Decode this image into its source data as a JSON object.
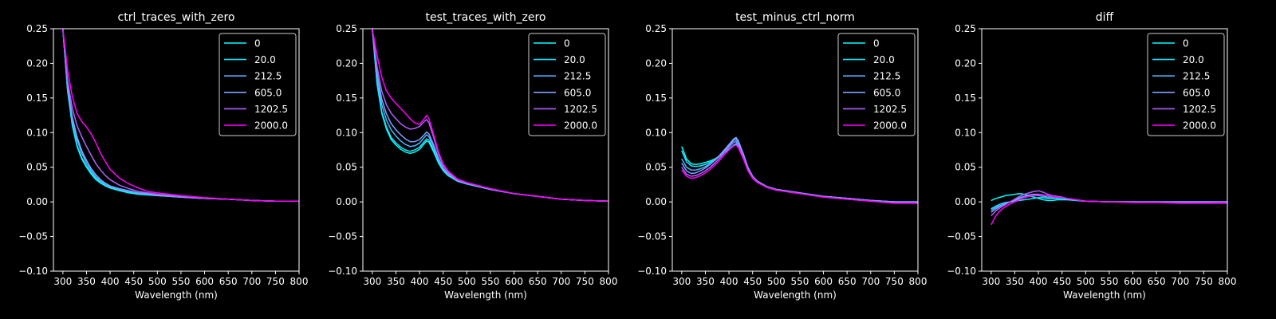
{
  "figure": {
    "background": "#000000",
    "foreground": "#ffffff"
  },
  "legend": {
    "placement": "top-right",
    "entries": [
      "0",
      "20.0",
      "212.5",
      "605.0",
      "1202.5",
      "2000.0"
    ],
    "colors": [
      "#00ffff",
      "#1ae5ff",
      "#4cb3ff",
      "#80a0ff",
      "#b060ff",
      "#ff00ff"
    ]
  },
  "chart_data": [
    {
      "type": "line",
      "title": "ctrl_traces_with_zero",
      "xlabel": "Wavelength (nm)",
      "ylabel": "",
      "xlim": [
        280,
        800
      ],
      "ylim": [
        -0.1,
        0.25
      ],
      "xticks": [
        300,
        350,
        400,
        450,
        500,
        550,
        600,
        650,
        700,
        750,
        800
      ],
      "yticks": [
        -0.1,
        -0.05,
        0.0,
        0.05,
        0.1,
        0.15,
        0.2,
        0.25
      ],
      "ytick_labels": [
        "−0.10",
        "−0.05",
        "0.00",
        "0.05",
        "0.10",
        "0.15",
        "0.20",
        "0.25"
      ],
      "legend": "top-right",
      "x": [
        300,
        310,
        320,
        330,
        340,
        350,
        360,
        370,
        380,
        390,
        400,
        420,
        440,
        460,
        480,
        500,
        550,
        600,
        650,
        700,
        750,
        800
      ],
      "series": [
        {
          "name": "0",
          "values": [
            0.25,
            0.16,
            0.11,
            0.08,
            0.062,
            0.05,
            0.04,
            0.032,
            0.027,
            0.023,
            0.02,
            0.016,
            0.013,
            0.011,
            0.01,
            0.009,
            0.007,
            0.005,
            0.004,
            0.002,
            0.001,
            0.001
          ]
        },
        {
          "name": "20.0",
          "values": [
            0.25,
            0.16,
            0.112,
            0.082,
            0.064,
            0.052,
            0.042,
            0.034,
            0.028,
            0.024,
            0.021,
            0.017,
            0.014,
            0.012,
            0.011,
            0.009,
            0.007,
            0.005,
            0.004,
            0.002,
            0.001,
            0.001
          ]
        },
        {
          "name": "212.5",
          "values": [
            0.25,
            0.165,
            0.118,
            0.09,
            0.07,
            0.056,
            0.045,
            0.036,
            0.03,
            0.025,
            0.022,
            0.018,
            0.015,
            0.013,
            0.011,
            0.01,
            0.007,
            0.005,
            0.004,
            0.002,
            0.001,
            0.001
          ]
        },
        {
          "name": "605.0",
          "values": [
            0.25,
            0.168,
            0.122,
            0.094,
            0.074,
            0.06,
            0.048,
            0.039,
            0.032,
            0.027,
            0.023,
            0.019,
            0.016,
            0.013,
            0.012,
            0.01,
            0.007,
            0.005,
            0.004,
            0.002,
            0.001,
            0.001
          ]
        },
        {
          "name": "1202.5",
          "values": [
            0.25,
            0.175,
            0.135,
            0.11,
            0.094,
            0.08,
            0.067,
            0.055,
            0.046,
            0.038,
            0.032,
            0.024,
            0.019,
            0.015,
            0.013,
            0.011,
            0.008,
            0.005,
            0.004,
            0.002,
            0.001,
            0.001
          ]
        },
        {
          "name": "2000.0",
          "values": [
            0.25,
            0.19,
            0.152,
            0.128,
            0.116,
            0.108,
            0.098,
            0.085,
            0.07,
            0.058,
            0.047,
            0.034,
            0.026,
            0.02,
            0.015,
            0.013,
            0.009,
            0.006,
            0.004,
            0.002,
            0.001,
            0.001
          ]
        }
      ]
    },
    {
      "type": "line",
      "title": "test_traces_with_zero",
      "xlabel": "Wavelength (nm)",
      "ylabel": "",
      "xlim": [
        280,
        800
      ],
      "ylim": [
        -0.1,
        0.25
      ],
      "xticks": [
        300,
        350,
        400,
        450,
        500,
        550,
        600,
        650,
        700,
        750,
        800
      ],
      "yticks": [
        -0.1,
        -0.05,
        0.0,
        0.05,
        0.1,
        0.15,
        0.2,
        0.25
      ],
      "ytick_labels": [
        "−0.10",
        "−0.05",
        "0.00",
        "0.05",
        "0.10",
        "0.15",
        "0.20",
        "0.25"
      ],
      "legend": "top-right",
      "x": [
        300,
        310,
        320,
        330,
        340,
        350,
        360,
        370,
        380,
        390,
        400,
        410,
        415,
        420,
        430,
        440,
        450,
        460,
        480,
        500,
        550,
        600,
        650,
        700,
        750,
        800
      ],
      "series": [
        {
          "name": "0",
          "values": [
            0.25,
            0.17,
            0.128,
            0.105,
            0.09,
            0.082,
            0.076,
            0.072,
            0.07,
            0.072,
            0.076,
            0.084,
            0.088,
            0.086,
            0.072,
            0.056,
            0.045,
            0.038,
            0.03,
            0.026,
            0.018,
            0.012,
            0.008,
            0.004,
            0.002,
            0.001
          ]
        },
        {
          "name": "20.0",
          "values": [
            0.25,
            0.172,
            0.13,
            0.108,
            0.093,
            0.085,
            0.079,
            0.075,
            0.073,
            0.075,
            0.079,
            0.087,
            0.091,
            0.089,
            0.075,
            0.058,
            0.046,
            0.039,
            0.03,
            0.026,
            0.018,
            0.012,
            0.008,
            0.004,
            0.002,
            0.001
          ]
        },
        {
          "name": "212.5",
          "values": [
            0.25,
            0.18,
            0.14,
            0.118,
            0.104,
            0.095,
            0.088,
            0.083,
            0.08,
            0.081,
            0.085,
            0.093,
            0.097,
            0.094,
            0.079,
            0.061,
            0.048,
            0.04,
            0.031,
            0.027,
            0.018,
            0.012,
            0.008,
            0.004,
            0.002,
            0.001
          ]
        },
        {
          "name": "605.0",
          "values": [
            0.25,
            0.186,
            0.148,
            0.127,
            0.113,
            0.104,
            0.097,
            0.091,
            0.087,
            0.087,
            0.09,
            0.097,
            0.101,
            0.098,
            0.082,
            0.063,
            0.049,
            0.041,
            0.031,
            0.027,
            0.018,
            0.012,
            0.008,
            0.004,
            0.002,
            0.001
          ]
        },
        {
          "name": "1202.5",
          "values": [
            0.25,
            0.195,
            0.16,
            0.14,
            0.128,
            0.12,
            0.113,
            0.108,
            0.105,
            0.106,
            0.109,
            0.116,
            0.119,
            0.114,
            0.093,
            0.069,
            0.053,
            0.043,
            0.032,
            0.027,
            0.019,
            0.012,
            0.008,
            0.004,
            0.002,
            0.001
          ]
        },
        {
          "name": "2000.0",
          "values": [
            0.25,
            0.212,
            0.18,
            0.16,
            0.15,
            0.142,
            0.135,
            0.128,
            0.12,
            0.114,
            0.112,
            0.12,
            0.125,
            0.12,
            0.097,
            0.072,
            0.055,
            0.045,
            0.033,
            0.028,
            0.019,
            0.012,
            0.008,
            0.004,
            0.002,
            0.001
          ]
        }
      ]
    },
    {
      "type": "line",
      "title": "test_minus_ctrl_norm",
      "xlabel": "Wavelength (nm)",
      "ylabel": "",
      "xlim": [
        280,
        800
      ],
      "ylim": [
        -0.1,
        0.25
      ],
      "xticks": [
        300,
        350,
        400,
        450,
        500,
        550,
        600,
        650,
        700,
        750,
        800
      ],
      "yticks": [
        -0.1,
        -0.05,
        0.0,
        0.05,
        0.1,
        0.15,
        0.2,
        0.25
      ],
      "ytick_labels": [
        "−0.10",
        "−0.05",
        "0.00",
        "0.05",
        "0.10",
        "0.15",
        "0.20",
        "0.25"
      ],
      "legend": "top-right",
      "x": [
        300,
        310,
        320,
        330,
        340,
        350,
        360,
        370,
        380,
        390,
        400,
        410,
        415,
        420,
        430,
        440,
        450,
        460,
        480,
        500,
        550,
        600,
        650,
        700,
        750,
        800
      ],
      "series": [
        {
          "name": "0",
          "values": [
            0.08,
            0.062,
            0.055,
            0.054,
            0.055,
            0.057,
            0.059,
            0.062,
            0.066,
            0.071,
            0.076,
            0.082,
            0.084,
            0.081,
            0.066,
            0.048,
            0.036,
            0.03,
            0.022,
            0.018,
            0.013,
            0.008,
            0.005,
            0.002,
            0.0,
            0.0
          ]
        },
        {
          "name": "20.0",
          "values": [
            0.074,
            0.058,
            0.052,
            0.051,
            0.052,
            0.054,
            0.057,
            0.061,
            0.066,
            0.072,
            0.079,
            0.086,
            0.088,
            0.084,
            0.068,
            0.049,
            0.037,
            0.03,
            0.022,
            0.018,
            0.013,
            0.008,
            0.005,
            0.002,
            0.0,
            0.0
          ]
        },
        {
          "name": "212.5",
          "values": [
            0.062,
            0.05,
            0.046,
            0.046,
            0.048,
            0.051,
            0.055,
            0.06,
            0.066,
            0.073,
            0.081,
            0.089,
            0.091,
            0.087,
            0.07,
            0.05,
            0.037,
            0.03,
            0.022,
            0.018,
            0.013,
            0.008,
            0.005,
            0.002,
            0.0,
            0.0
          ]
        },
        {
          "name": "605.0",
          "values": [
            0.056,
            0.045,
            0.041,
            0.042,
            0.045,
            0.049,
            0.054,
            0.06,
            0.067,
            0.075,
            0.083,
            0.091,
            0.093,
            0.088,
            0.07,
            0.05,
            0.037,
            0.03,
            0.022,
            0.018,
            0.013,
            0.008,
            0.005,
            0.002,
            0.0,
            -0.001
          ]
        },
        {
          "name": "1202.5",
          "values": [
            0.05,
            0.04,
            0.037,
            0.038,
            0.041,
            0.045,
            0.05,
            0.056,
            0.063,
            0.071,
            0.079,
            0.086,
            0.087,
            0.082,
            0.066,
            0.047,
            0.036,
            0.029,
            0.021,
            0.017,
            0.012,
            0.007,
            0.004,
            0.001,
            -0.001,
            -0.001
          ]
        },
        {
          "name": "2000.0",
          "values": [
            0.046,
            0.037,
            0.034,
            0.035,
            0.038,
            0.042,
            0.047,
            0.053,
            0.06,
            0.068,
            0.075,
            0.081,
            0.082,
            0.078,
            0.063,
            0.045,
            0.034,
            0.028,
            0.021,
            0.017,
            0.012,
            0.007,
            0.004,
            0.001,
            -0.002,
            -0.002
          ]
        }
      ]
    },
    {
      "type": "line",
      "title": "diff",
      "xlabel": "Wavelength (nm)",
      "ylabel": "",
      "xlim": [
        280,
        800
      ],
      "ylim": [
        -0.1,
        0.25
      ],
      "xticks": [
        300,
        350,
        400,
        450,
        500,
        550,
        600,
        650,
        700,
        750,
        800
      ],
      "yticks": [
        -0.1,
        -0.05,
        0.0,
        0.05,
        0.1,
        0.15,
        0.2,
        0.25
      ],
      "ytick_labels": [
        "−0.10",
        "−0.05",
        "0.00",
        "0.05",
        "0.10",
        "0.15",
        "0.20",
        "0.25"
      ],
      "legend": "top-right",
      "x": [
        300,
        310,
        320,
        330,
        340,
        350,
        360,
        370,
        380,
        390,
        400,
        410,
        420,
        430,
        440,
        450,
        460,
        480,
        500,
        550,
        600,
        650,
        700,
        750,
        800
      ],
      "series": [
        {
          "name": "0",
          "values": [
            0.002,
            0.005,
            0.007,
            0.009,
            0.01,
            0.011,
            0.012,
            0.011,
            0.009,
            0.007,
            0.005,
            0.003,
            0.002,
            0.002,
            0.003,
            0.003,
            0.003,
            0.002,
            0.001,
            0.0,
            0.0,
            0.0,
            0.0,
            0.0,
            0.0
          ]
        },
        {
          "name": "20.0",
          "values": [
            -0.01,
            -0.006,
            -0.003,
            -0.001,
            0.0,
            0.001,
            0.002,
            0.003,
            0.004,
            0.005,
            0.006,
            0.006,
            0.005,
            0.005,
            0.005,
            0.005,
            0.004,
            0.002,
            0.001,
            0.0,
            0.0,
            0.0,
            0.0,
            0.0,
            0.0
          ]
        },
        {
          "name": "212.5",
          "values": [
            -0.012,
            -0.008,
            -0.005,
            -0.002,
            0.0,
            0.002,
            0.004,
            0.006,
            0.008,
            0.009,
            0.009,
            0.008,
            0.007,
            0.007,
            0.007,
            0.006,
            0.005,
            0.003,
            0.001,
            0.0,
            0.0,
            0.0,
            0.0,
            0.0,
            0.0
          ]
        },
        {
          "name": "605.0",
          "values": [
            -0.015,
            -0.01,
            -0.006,
            -0.003,
            0.0,
            0.003,
            0.006,
            0.008,
            0.01,
            0.011,
            0.011,
            0.01,
            0.009,
            0.008,
            0.007,
            0.006,
            0.005,
            0.003,
            0.001,
            0.0,
            0.0,
            0.0,
            0.0,
            0.0,
            0.0
          ]
        },
        {
          "name": "1202.5",
          "values": [
            -0.02,
            -0.013,
            -0.008,
            -0.004,
            0.0,
            0.004,
            0.008,
            0.011,
            0.013,
            0.015,
            0.016,
            0.014,
            0.011,
            0.009,
            0.008,
            0.007,
            0.005,
            0.003,
            0.001,
            0.0,
            0.0,
            0.0,
            -0.001,
            -0.001,
            0.0
          ]
        },
        {
          "name": "2000.0",
          "values": [
            -0.033,
            -0.02,
            -0.012,
            -0.007,
            -0.003,
            0.0,
            0.003,
            0.006,
            0.008,
            0.009,
            0.01,
            0.01,
            0.009,
            0.008,
            0.007,
            0.006,
            0.005,
            0.003,
            0.001,
            0.0,
            -0.001,
            -0.001,
            -0.002,
            -0.002,
            -0.002
          ]
        }
      ]
    }
  ]
}
